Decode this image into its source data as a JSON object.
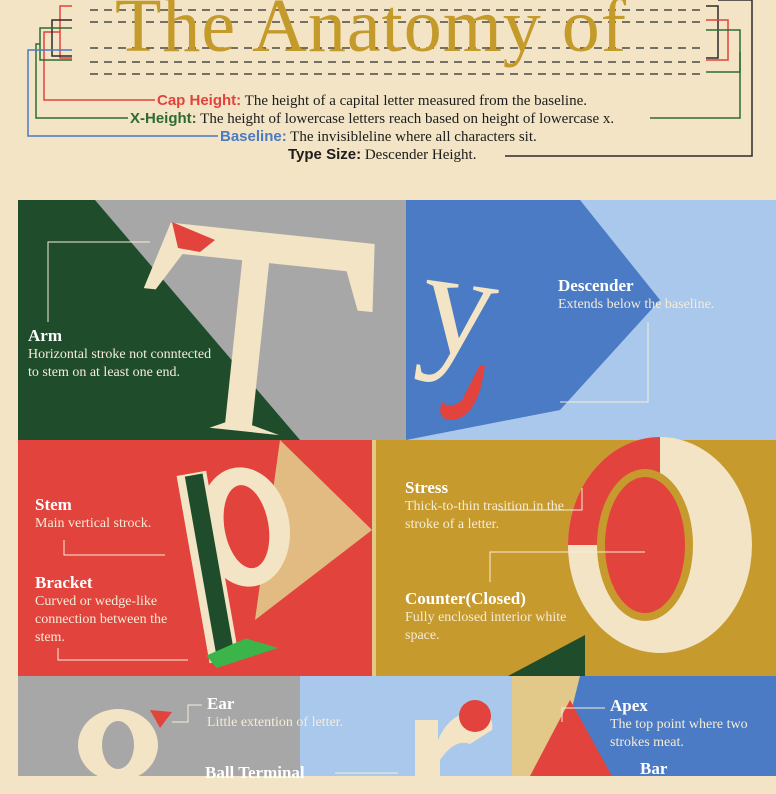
{
  "header": {
    "title": "The Anatomy of",
    "lines": [
      {
        "term": "Cap Height:",
        "desc": " The height of a capital letter measured from the baseline."
      },
      {
        "term": "X-Height:",
        "desc": " The height of lowercase letters reach based on height of lowercase x."
      },
      {
        "term": "Baseline:",
        "desc": " The invisibleline where all characters sit."
      },
      {
        "term": "Type Size:",
        "desc": " Descender Height."
      }
    ]
  },
  "colors": {
    "cream": "#f2e4c4",
    "gold": "#c49a2a",
    "red": "#e2433c",
    "green": "#1f4d2c",
    "blue": "#4a7bc4",
    "lightblue": "#a9c8ec",
    "gray": "#a7a7a7"
  },
  "panels": {
    "arm": {
      "letter": "T",
      "title": "Arm",
      "desc": "Horizontal stroke not conntected to stem on at least one end."
    },
    "descender": {
      "letter": "y",
      "title": "Descender",
      "desc": "Extends below the baseline."
    },
    "stem": {
      "letter": "p",
      "title": "Stem",
      "desc": "Main vertical strock."
    },
    "bracket": {
      "title": "Bracket",
      "desc": "Curved or wedge-like connection between the stem."
    },
    "stress": {
      "letter": "O",
      "title": "Stress",
      "desc": "Thick-to-thin trasition in the stroke of a letter."
    },
    "counter": {
      "title": "Counter(Closed)",
      "desc": "Fully enclosed interior white space."
    },
    "ear": {
      "letter": "g",
      "title": "Ear",
      "desc": "Little extention of letter."
    },
    "ball": {
      "letter": "r",
      "title": "Ball Terminal"
    },
    "apex": {
      "letter": "A",
      "title": "Apex",
      "desc": "The top point where two strokes meat."
    },
    "bar": {
      "title": "Bar"
    }
  }
}
